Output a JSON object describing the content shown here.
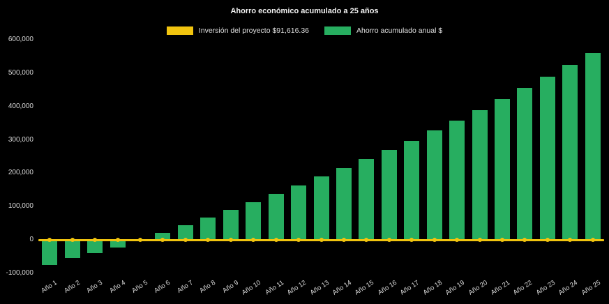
{
  "page": {
    "background": "#000000"
  },
  "chart": {
    "title": "Ahorro económico acumulado a 25 años",
    "legend": [
      {
        "label": "Inversión del proyecto $91,616.36",
        "color": "#f1c40f"
      },
      {
        "label": "Ahorro acumulado anual $",
        "color": "#27ae60"
      }
    ]
  },
  "chart_data": {
    "type": "bar",
    "title": "Ahorro económico acumulado a 25 años",
    "categories": [
      "Año 1",
      "Año 2",
      "Año 3",
      "Año 4",
      "Año 5",
      "Año 6",
      "Año 7",
      "Año 8",
      "Año 9",
      "Año 10",
      "Año 11",
      "Año 12",
      "Año 13",
      "Año 14",
      "Año 15",
      "Año 16",
      "Año 17",
      "Año 18",
      "Año 19",
      "Año 20",
      "Año 21",
      "Año 22",
      "Año 23",
      "Año 24",
      "Año 25"
    ],
    "series": [
      {
        "name": "Ahorro acumulado anual $",
        "type": "bar",
        "color": "#27ae60",
        "values": [
          -75000,
          -55000,
          -40000,
          -22000,
          2000,
          22000,
          45000,
          67000,
          90000,
          113000,
          138000,
          163000,
          190000,
          215000,
          242000,
          270000,
          298000,
          328000,
          358000,
          390000,
          423000,
          456000,
          490000,
          525000,
          560000
        ]
      },
      {
        "name": "Inversión del proyecto $91,616.36",
        "type": "line",
        "color": "#f1c40f",
        "constant_value": 0
      }
    ],
    "y_ticks": [
      {
        "value": 600000,
        "label": "600,000"
      },
      {
        "value": 500000,
        "label": "500,000"
      },
      {
        "value": 400000,
        "label": "400,000"
      },
      {
        "value": 300000,
        "label": "300,000"
      },
      {
        "value": 200000,
        "label": "200,000"
      },
      {
        "value": 100000,
        "label": "100,000"
      },
      {
        "value": 0,
        "label": "0"
      },
      {
        "value": -100000,
        "label": "-100,000"
      }
    ],
    "ylim": [
      -100000,
      600000
    ],
    "grid": false,
    "legend_position": "top",
    "background": "#000000"
  }
}
